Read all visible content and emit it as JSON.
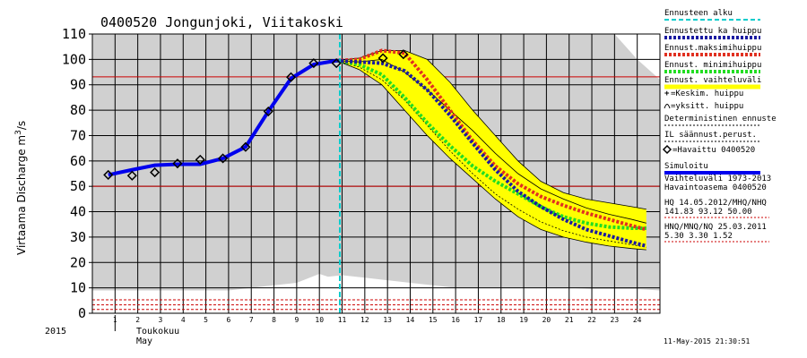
{
  "chart_data": {
    "type": "line",
    "title": "0400520 Jongunjoki, Viitakoski",
    "ylabel": "Virtaama Discharge m³/s",
    "ylim": [
      0,
      110
    ],
    "yticks": [
      0,
      10,
      20,
      30,
      40,
      50,
      60,
      70,
      80,
      90,
      100,
      110
    ],
    "xlim": [
      0,
      25
    ],
    "xticks": [
      "1",
      "2",
      "3",
      "4",
      "5",
      "6",
      "7",
      "8",
      "9",
      "10",
      "11",
      "12",
      "13",
      "14",
      "15",
      "16",
      "17",
      "18",
      "19",
      "20",
      "21",
      "22",
      "23",
      "24"
    ],
    "x_unit_labels": [
      "Toukokuu",
      "May"
    ],
    "year_label": "2015",
    "timestamp": "11-May-2015 21:30:51",
    "forecast_start": 10.9,
    "red_reference_lines": [
      93.12,
      50.0,
      5.3,
      3.3,
      1.52
    ],
    "grid": true,
    "legend_position": "right",
    "legend": [
      {
        "label": "Ennusteen alku",
        "color": "#00cccc",
        "style": "dashed"
      },
      {
        "label": "Ennustettu ka huippu",
        "color": "#1a1aa0",
        "style": "dotted"
      },
      {
        "label": "Ennust.maksimihuippu",
        "color": "#e03020",
        "style": "dotted"
      },
      {
        "label": "Ennust. minimihuippu",
        "color": "#22dd22",
        "style": "dotted"
      },
      {
        "label": "Ennust. vaihteluväli",
        "color": "#ffff00",
        "style": "solid"
      },
      {
        "label": "=Keskim. huippu",
        "marker": "+"
      },
      {
        "label": "=yksitt. huippu",
        "marker": "arc"
      },
      {
        "label": "Deterministinen ennuste",
        "color": "#000000",
        "style": "dotted"
      },
      {
        "label": "IL säännust.perust.",
        "color": "#000000",
        "style": "dotted"
      },
      {
        "label": "=Havaittu 0400520",
        "marker": "diamond"
      },
      {
        "label": "Simuloitu",
        "color": "#0000ee",
        "style": "solid"
      }
    ],
    "info_lines": [
      "Vaihteluväli 1973-2013",
      "Havaintoasema 0400520",
      "HQ 14.05.2012/MHQ/NHQ",
      "141.83 93.12 50.00",
      "HNQ/MNQ/NQ 25.03.2011",
      "5.30 3.30 1.52"
    ],
    "series": [
      {
        "name": "Havaittu 0400520",
        "x": [
          0.7,
          1.75,
          2.75,
          3.75,
          4.75,
          5.75,
          6.75,
          7.75,
          8.75,
          9.75,
          10.75,
          12.8,
          13.7
        ],
        "values": [
          54.5,
          54.2,
          55.5,
          59,
          60.5,
          61,
          65.5,
          79.5,
          93,
          98.5,
          98.5,
          100.5,
          102
        ]
      },
      {
        "name": "Simuloitu",
        "x": [
          0.7,
          1.75,
          2.75,
          3.75,
          4.75,
          5.75,
          6.75,
          7.75,
          8.75,
          9.75,
          10.75
        ],
        "values": [
          54.5,
          56.5,
          58.3,
          58.7,
          58.7,
          61,
          65.5,
          79.5,
          92.5,
          98,
          99.5
        ]
      },
      {
        "name": "Ennustettu ka huippu",
        "x": [
          10.75,
          11.75,
          12.75,
          13.75,
          14.75,
          15.75,
          16.75,
          17.75,
          18.75,
          19.75,
          20.75,
          21.75,
          22.75,
          23.75,
          24.4
        ],
        "values": [
          99.5,
          99,
          98.5,
          95.5,
          88,
          78,
          67,
          56.5,
          48,
          42,
          37,
          33,
          30.5,
          28,
          26.5
        ]
      },
      {
        "name": "Ennust.maksimihuippu",
        "x": [
          10.75,
          11.75,
          12.75,
          13.75,
          14.75,
          15.75,
          16.75,
          17.75,
          18.75,
          19.75,
          20.75,
          21.75,
          22.75,
          23.75,
          24.4
        ],
        "values": [
          99.5,
          100,
          103.5,
          102.5,
          92,
          80,
          68,
          58,
          51,
          46,
          42.5,
          39.5,
          37,
          34.5,
          33
        ]
      },
      {
        "name": "Ennust. minimihuippu",
        "x": [
          10.75,
          11.75,
          12.75,
          13.75,
          14.75,
          15.75,
          16.75,
          17.75,
          18.75,
          19.75,
          20.75,
          21.75,
          22.75,
          23.75,
          24.4
        ],
        "values": [
          99.5,
          98,
          94,
          85,
          75,
          66,
          58,
          52,
          47,
          42,
          38,
          35.5,
          34,
          33.5,
          33.5
        ]
      },
      {
        "name": "Ennust. vaihteluväli upper",
        "x": [
          10.75,
          11.75,
          12.75,
          13.75,
          14.75,
          15.75,
          16.75,
          17.75,
          18.75,
          19.75,
          20.75,
          21.75,
          22.75,
          23.75,
          24.4
        ],
        "values": [
          99.5,
          100.5,
          103.5,
          103.5,
          100,
          91,
          80,
          70,
          60,
          52,
          47.5,
          45,
          43.5,
          42,
          41
        ]
      },
      {
        "name": "Ennust. vaihteluväli lower",
        "x": [
          10.75,
          11.75,
          12.75,
          13.75,
          14.75,
          15.75,
          16.75,
          17.75,
          18.75,
          19.75,
          20.75,
          21.75,
          22.75,
          23.75,
          24.4
        ],
        "values": [
          99.5,
          96,
          90,
          80,
          70,
          61,
          53,
          45,
          38,
          33,
          30,
          28,
          26.5,
          25.5,
          25
        ]
      },
      {
        "name": "Deterministinen ennuste",
        "x": [
          10.75,
          11.75,
          12.75,
          13.75,
          14.75,
          15.75,
          16.75,
          17.75,
          18.75,
          19.75,
          20.75,
          21.75,
          22.75,
          23.75,
          24.4
        ],
        "values": [
          99.5,
          99,
          100,
          95,
          88,
          80,
          72,
          63,
          55,
          49,
          45,
          41.5,
          39,
          37,
          35.5
        ]
      },
      {
        "name": "IL säännust.perust.",
        "x": [
          10.75,
          11.75,
          12.75,
          13.75,
          14.75,
          15.75,
          16.75,
          17.75,
          18.75,
          19.75,
          20.75,
          21.75,
          22.75,
          23.75,
          24.4
        ],
        "values": [
          99.5,
          97,
          92,
          84,
          74,
          64,
          55,
          47,
          41,
          36,
          32.5,
          30,
          28.5,
          27,
          26
        ]
      }
    ],
    "background_band_max": {
      "x": [
        0,
        1,
        2,
        3,
        4,
        5,
        6,
        7,
        8,
        9,
        10,
        11,
        12,
        13,
        14,
        15,
        16,
        17,
        18,
        19,
        20,
        21,
        22,
        23,
        24,
        25
      ],
      "values": [
        110,
        110,
        110,
        110,
        110,
        110,
        110,
        110,
        110,
        110,
        110,
        110,
        110,
        110,
        110,
        110,
        110,
        110,
        110,
        110,
        110,
        110,
        110,
        110,
        100,
        92
      ]
    },
    "background_band_min": {
      "x": [
        0,
        1,
        2,
        3,
        4,
        5,
        6,
        7,
        8,
        9,
        10,
        11,
        12,
        13,
        14,
        15,
        16,
        17,
        18,
        19,
        20,
        21,
        22,
        23,
        24,
        25
      ],
      "values": [
        9,
        9,
        9,
        9,
        9,
        9,
        9,
        10,
        11,
        12,
        14,
        15,
        14,
        13,
        12,
        11,
        10,
        10,
        10,
        10,
        10,
        10,
        9.5,
        9.5,
        9.5,
        9
      ]
    },
    "white_low_area": {
      "x": [
        0,
        5,
        6,
        7,
        8,
        9,
        10,
        10.5,
        11,
        12,
        13,
        14,
        15,
        16,
        17,
        18,
        19,
        20,
        21,
        22,
        23,
        24,
        25
      ],
      "values": [
        3,
        3,
        3.5,
        6,
        9,
        12,
        15.5,
        14,
        12,
        11,
        10.5,
        10,
        9.5,
        9.5,
        9,
        9,
        8.5,
        8.5,
        8,
        8,
        8,
        8,
        8
      ]
    }
  }
}
